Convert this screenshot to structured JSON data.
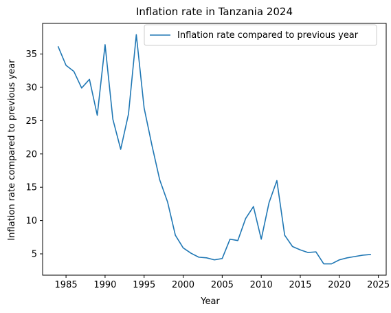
{
  "chart_data": {
    "type": "line",
    "title": "Inflation rate in Tanzania 2024",
    "xlabel": "Year",
    "ylabel": "Inflation rate compared to previous year",
    "xlim": [
      1982,
      2026
    ],
    "ylim": [
      1.8,
      39.6
    ],
    "xticks": [
      1985,
      1990,
      1995,
      2000,
      2005,
      2010,
      2015,
      2020,
      2025
    ],
    "yticks": [
      5,
      10,
      15,
      20,
      25,
      30,
      35
    ],
    "grid": false,
    "legend_position": "upper-right",
    "color": "#1f77b4",
    "series": [
      {
        "name": "Inflation rate compared to previous year",
        "x": [
          1984,
          1985,
          1986,
          1987,
          1988,
          1989,
          1990,
          1991,
          1992,
          1993,
          1994,
          1995,
          1996,
          1997,
          1998,
          1999,
          2000,
          2001,
          2002,
          2003,
          2004,
          2005,
          2006,
          2007,
          2008,
          2009,
          2010,
          2011,
          2012,
          2013,
          2014,
          2015,
          2016,
          2017,
          2018,
          2019,
          2020,
          2021,
          2022,
          2023,
          2024
        ],
        "y": [
          36.1,
          33.3,
          32.4,
          29.9,
          31.2,
          25.8,
          36.4,
          25.2,
          20.7,
          26.0,
          37.9,
          26.9,
          21.3,
          16.1,
          12.8,
          7.8,
          5.9,
          5.1,
          4.5,
          4.4,
          4.1,
          4.3,
          7.2,
          7.0,
          10.3,
          12.1,
          7.2,
          12.7,
          16.0,
          7.8,
          6.1,
          5.6,
          5.2,
          5.3,
          3.5,
          3.5,
          4.1,
          4.4,
          4.6,
          4.8,
          4.9
        ]
      }
    ]
  }
}
